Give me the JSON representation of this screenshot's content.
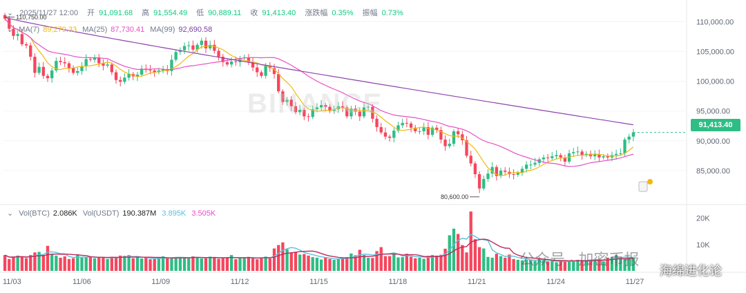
{
  "header": {
    "date": "2025/11/27 12:00",
    "open_label": "开",
    "open": "91,091.68",
    "high_label": "高",
    "high": "91,554.49",
    "low_label": "低",
    "low": "90,889.11",
    "close_label": "收",
    "close": "91,413.40",
    "change_label": "涨跌幅",
    "change": "0.35%",
    "amplitude_label": "振幅",
    "amplitude": "0.73%"
  },
  "ma": {
    "ma7_label": "MA(7)",
    "ma7": "89,279.33",
    "ma25_label": "MA(25)",
    "ma25": "87,730.41",
    "ma99_label": "MA(99)",
    "ma99": "92,690.58"
  },
  "volume": {
    "btc_label": "Vol(BTC)",
    "btc": "2.086K",
    "usdt_label": "Vol(USDT)",
    "usdt": "190.387M",
    "v1": "3.895K",
    "v2": "3.505K"
  },
  "current_price": "91,413.40",
  "high_marker": "110,750.00",
  "low_marker": "80,600.00",
  "watermark": {
    "text1": "公众号 · 加密币报",
    "text2": "海绵进化论",
    "logo": "BINANCE"
  },
  "colors": {
    "up": "#2ebd85",
    "down": "#f6465d",
    "ma7": "#f0b90b",
    "ma25": "#e84fc5",
    "ma99": "#8e44ad",
    "vol_ma": "#5bc0de",
    "vol_ma2": "#c0285c"
  },
  "chart_data": {
    "type": "candlestick",
    "price_axis": {
      "min": 80000,
      "max": 112000,
      "ticks": [
        110000,
        105000,
        100000,
        95000,
        90000,
        85000
      ],
      "tick_labels": [
        "110,000.00",
        "105,000.00",
        "100,000.00",
        "95,000.00",
        "90,000.00",
        "85,000.00"
      ]
    },
    "volume_axis": {
      "max": 22000,
      "ticks": [
        20000,
        10000
      ],
      "tick_labels": [
        "20K",
        "10K"
      ]
    },
    "x_tick_labels": [
      "11/03",
      "11/06",
      "11/09",
      "11/12",
      "11/15",
      "11/18",
      "11/21",
      "11/24",
      "11/27"
    ],
    "close": [
      110500,
      108800,
      107600,
      107900,
      106200,
      106000,
      104100,
      101400,
      102400,
      100900,
      100500,
      101800,
      103400,
      103200,
      103000,
      102200,
      101400,
      101700,
      102500,
      103700,
      103600,
      104000,
      103000,
      102600,
      102800,
      101500,
      100200,
      99900,
      100600,
      101200,
      100800,
      101100,
      102100,
      101900,
      101800,
      101500,
      101800,
      102000,
      101700,
      103600,
      104900,
      105200,
      105900,
      106000,
      105300,
      106100,
      106800,
      105500,
      106100,
      105100,
      104100,
      103200,
      102800,
      103300,
      103200,
      103900,
      104000,
      103200,
      102300,
      101500,
      100900,
      102600,
      102200,
      101200,
      98300,
      96500,
      96900,
      95800,
      94800,
      95200,
      94100,
      94000,
      95300,
      95600,
      96000,
      95700,
      95000,
      95300,
      95800,
      95600,
      94100,
      95400,
      94900,
      94100,
      95600,
      95700,
      93700,
      92300,
      91400,
      90700,
      90500,
      91700,
      92600,
      93000,
      92900,
      92200,
      91600,
      91600,
      92300,
      91000,
      92200,
      91800,
      90200,
      89100,
      89500,
      91600,
      91100,
      90100,
      87500,
      86200,
      84400,
      82000,
      83600,
      84500,
      85600,
      84100,
      85000,
      84800,
      84400,
      84300,
      84600,
      85300,
      86000,
      86000,
      86300,
      86900,
      87200,
      87100,
      87400,
      87600,
      87200,
      86500,
      87900,
      88100,
      88200,
      87600,
      87800,
      87400,
      87700,
      87200,
      87400,
      87200,
      87600,
      87800,
      87900,
      90200,
      90700,
      91413
    ],
    "volume": [
      6000,
      4500,
      5200,
      5800,
      5400,
      4800,
      6000,
      7000,
      7200,
      6000,
      9500,
      6500,
      5800,
      5000,
      5500,
      4500,
      4800,
      6200,
      5000,
      5400,
      5200,
      4800,
      5300,
      5000,
      4500,
      5300,
      5000,
      5800,
      5700,
      6000,
      4800,
      5100,
      4700,
      5000,
      4400,
      4500,
      5000,
      5500,
      5100,
      4800,
      5200,
      5200,
      5100,
      4800,
      5500,
      5000,
      4700,
      4800,
      5400,
      5200,
      4600,
      4800,
      5100,
      6000,
      4400,
      4800,
      4900,
      5300,
      4800,
      4400,
      5100,
      5400,
      4700,
      8500,
      9800,
      10800,
      8200,
      7000,
      7200,
      6200,
      6400,
      5800,
      5200,
      5000,
      4300,
      5100,
      4500,
      4200,
      4600,
      5000,
      5200,
      6600,
      5900,
      8000,
      6000,
      5000,
      4900,
      7500,
      9000,
      5600,
      5600,
      6600,
      5100,
      5200,
      6500,
      5400,
      4800,
      5000,
      4600,
      5700,
      6000,
      5800,
      6100,
      8400,
      13500,
      16000,
      14000,
      9800,
      7000,
      22500,
      12000,
      9000,
      8500,
      5300,
      5000,
      6500,
      5600,
      5000,
      6200,
      4500,
      4200,
      4000,
      4200,
      4000,
      3800,
      4800,
      4000,
      3600,
      3900,
      3300,
      3500,
      3800,
      3600,
      3900,
      4200,
      4100,
      3900,
      4300,
      4500,
      4300,
      3600,
      5000,
      5200,
      6000,
      5100,
      4800,
      4700,
      5000
    ],
    "ma7": [],
    "ma25": [],
    "ma99_start": 110700,
    "ma99_end": 92690
  }
}
